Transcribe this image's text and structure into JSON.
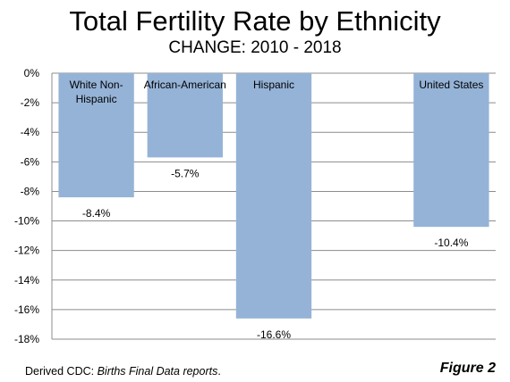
{
  "chart_data": {
    "type": "bar",
    "title": "Total Fertility Rate by Ethnicity",
    "subtitle": "CHANGE: 2010 - 2018",
    "categories": [
      [
        "White Non-",
        "Hispanic"
      ],
      [
        "African-American"
      ],
      [
        "Hispanic"
      ],
      [
        ""
      ],
      [
        "United States"
      ]
    ],
    "values": [
      -8.4,
      -5.7,
      -16.6,
      null,
      -10.4
    ],
    "value_labels": [
      "-8.4%",
      "-5.7%",
      "-16.6%",
      "",
      "-10.4%"
    ],
    "ylim": [
      -18,
      0
    ],
    "yticks": [
      0,
      -2,
      -4,
      -6,
      -8,
      -10,
      -12,
      -14,
      -16,
      -18
    ],
    "ytick_labels": [
      "0%",
      "-2%",
      "-4%",
      "-6%",
      "-8%",
      "-10%",
      "-12%",
      "-14%",
      "-16%",
      "-18%"
    ],
    "grid": true,
    "bar_color": "#95b3d7",
    "grid_color": "#8c8c8c"
  },
  "footer": {
    "source_prefix": "Derived  CDC: ",
    "source_italic": "Births Final Data reports",
    "source_suffix": ".",
    "figure_label": "Figure 2"
  }
}
